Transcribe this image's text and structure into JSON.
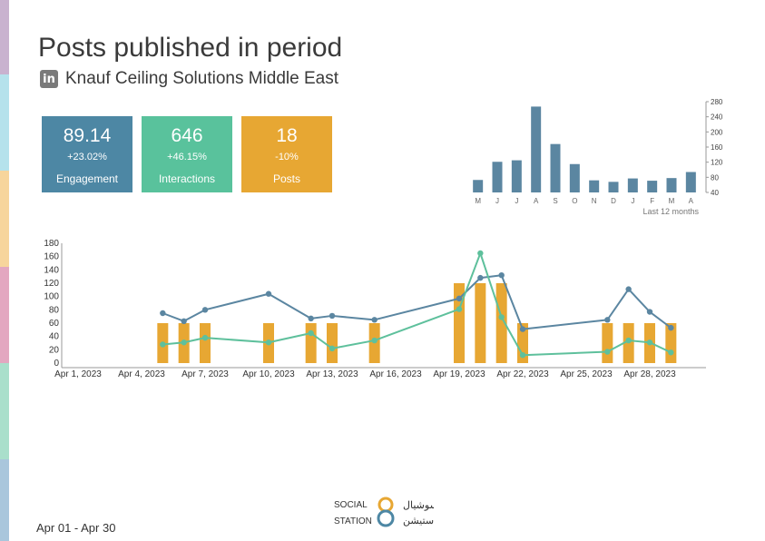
{
  "page": {
    "title": "Posts published in period",
    "subtitle": "Knauf Ceiling Solutions Middle East",
    "date_range": "Apr 01 - Apr 30",
    "stripe_colors": [
      "#c9b2cf",
      "#b5e2ec",
      "#f7d59c",
      "#e3a7c0",
      "#a9dfcb",
      "#a9c6dc"
    ]
  },
  "logo": {
    "line1": "SOCIAL",
    "line2": "STATION",
    "arabic1": "سوشيال",
    "arabic2": "ستيشن"
  },
  "kpis": [
    {
      "value": "89.14",
      "change": "+23.02%",
      "label": "Engagement",
      "color": "#4d87a4"
    },
    {
      "value": "646",
      "change": "+46.15%",
      "label": "Interactions",
      "color": "#59c29c"
    },
    {
      "value": "18",
      "change": "-10%",
      "label": "Posts",
      "color": "#e7a733"
    }
  ],
  "chart_data": [
    {
      "type": "bar",
      "categories": [
        "M",
        "J",
        "J",
        "A",
        "S",
        "O",
        "N",
        "D",
        "J",
        "F",
        "M",
        "A"
      ],
      "values": [
        73,
        121,
        125,
        267,
        168,
        115,
        72,
        68,
        77,
        71,
        78,
        94
      ],
      "ylim": [
        40,
        280
      ],
      "yticks": [
        40,
        80,
        120,
        160,
        200,
        240,
        280
      ],
      "xlabel": "Last 12 months",
      "color": "#5b86a1"
    },
    {
      "type": "bar+line",
      "x": [
        "Apr 1",
        "Apr 2",
        "Apr 3",
        "Apr 4",
        "Apr 5",
        "Apr 6",
        "Apr 7",
        "Apr 8",
        "Apr 9",
        "Apr 10",
        "Apr 11",
        "Apr 12",
        "Apr 13",
        "Apr 14",
        "Apr 15",
        "Apr 16",
        "Apr 17",
        "Apr 18",
        "Apr 19",
        "Apr 20",
        "Apr 21",
        "Apr 22",
        "Apr 23",
        "Apr 24",
        "Apr 25",
        "Apr 26",
        "Apr 27",
        "Apr 28",
        "Apr 29",
        "Apr 30"
      ],
      "xtick_labels": [
        "Apr 1, 2023",
        "Apr 4, 2023",
        "Apr 7, 2023",
        "Apr 10, 2023",
        "Apr 13, 2023",
        "Apr 16, 2023",
        "Apr 19, 2023",
        "Apr 22, 2023",
        "Apr 25, 2023",
        "Apr 28, 2023"
      ],
      "xtick_days": [
        1,
        4,
        7,
        10,
        13,
        16,
        19,
        22,
        25,
        28
      ],
      "ylim": [
        0,
        180
      ],
      "yticks": [
        0,
        20,
        40,
        60,
        80,
        100,
        120,
        140,
        160,
        180
      ],
      "bars": {
        "color": "#e7a733",
        "points": [
          [
            5,
            60
          ],
          [
            6,
            60
          ],
          [
            7,
            60
          ],
          [
            10,
            60
          ],
          [
            12,
            60
          ],
          [
            13,
            60
          ],
          [
            15,
            60
          ],
          [
            19,
            120
          ],
          [
            20,
            120
          ],
          [
            21,
            120
          ],
          [
            22,
            60
          ],
          [
            26,
            60
          ],
          [
            27,
            60
          ],
          [
            28,
            60
          ],
          [
            29,
            60
          ]
        ]
      },
      "series": [
        {
          "color": "#5b86a1",
          "points": [
            [
              5,
              75
            ],
            [
              6,
              63
            ],
            [
              7,
              80
            ],
            [
              10,
              104
            ],
            [
              12,
              67
            ],
            [
              13,
              71
            ],
            [
              15,
              65
            ],
            [
              19,
              97
            ],
            [
              20,
              128
            ],
            [
              21,
              132
            ],
            [
              22,
              51
            ],
            [
              26,
              65
            ],
            [
              27,
              111
            ],
            [
              28,
              77
            ],
            [
              29,
              53
            ]
          ]
        },
        {
          "color": "#5ec09c",
          "points": [
            [
              5,
              28
            ],
            [
              6,
              31
            ],
            [
              7,
              38
            ],
            [
              10,
              31
            ],
            [
              12,
              45
            ],
            [
              13,
              22
            ],
            [
              15,
              34
            ],
            [
              19,
              81
            ],
            [
              20,
              165
            ],
            [
              21,
              69
            ],
            [
              22,
              12
            ],
            [
              26,
              17
            ],
            [
              27,
              34
            ],
            [
              28,
              31
            ],
            [
              29,
              16
            ]
          ]
        }
      ]
    }
  ]
}
